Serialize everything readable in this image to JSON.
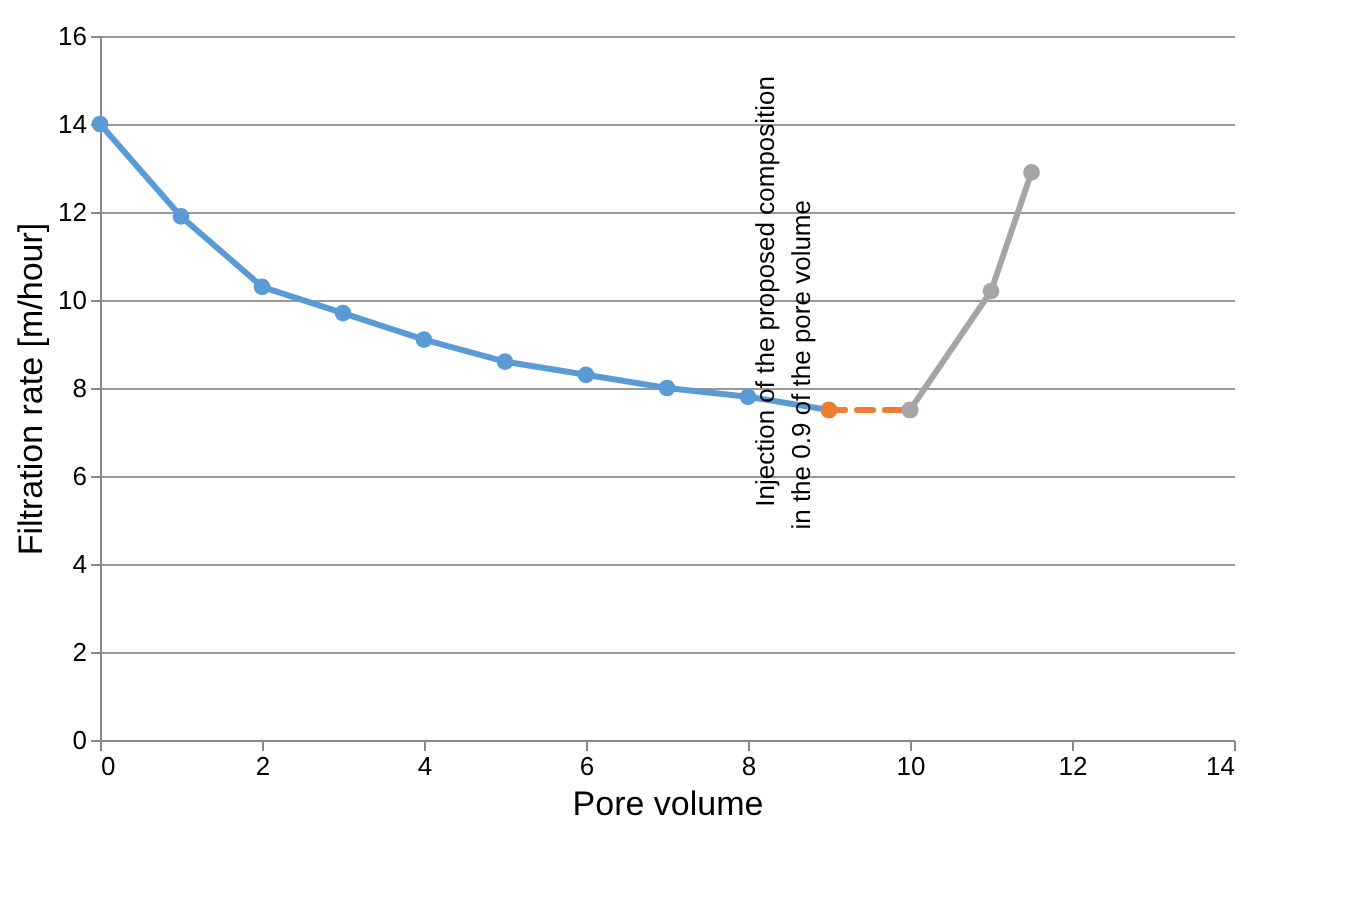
{
  "chart_data": {
    "type": "line",
    "xlabel": "Pore volume",
    "ylabel": "Filtration rate [m/hour]",
    "xlim": [
      0,
      14
    ],
    "xticks": [
      0,
      2,
      4,
      6,
      8,
      10,
      12,
      14
    ],
    "ylim": [
      0,
      16
    ],
    "yticks": [
      0,
      2,
      4,
      6,
      8,
      10,
      12,
      14,
      16
    ],
    "grid": "y",
    "marker": "circle",
    "series": [
      {
        "color": "#5b9bd5",
        "x": [
          0,
          1,
          2,
          3,
          4,
          5,
          6,
          7,
          8,
          9
        ],
        "values": [
          14,
          11.9,
          10.3,
          9.7,
          9.1,
          8.6,
          8.3,
          8.0,
          7.8,
          7.5
        ]
      },
      {
        "color": "#ed7d31",
        "x": [
          9,
          10
        ],
        "values": [
          7.5,
          7.5
        ],
        "line_style": "dashed"
      },
      {
        "color": "#a5a5a5",
        "x": [
          10,
          11,
          11.5
        ],
        "values": [
          7.5,
          10.2,
          12.9
        ]
      }
    ],
    "annotations": [
      "Injection of the proposed composition",
      "in the 0.9 of the pore volume"
    ]
  }
}
